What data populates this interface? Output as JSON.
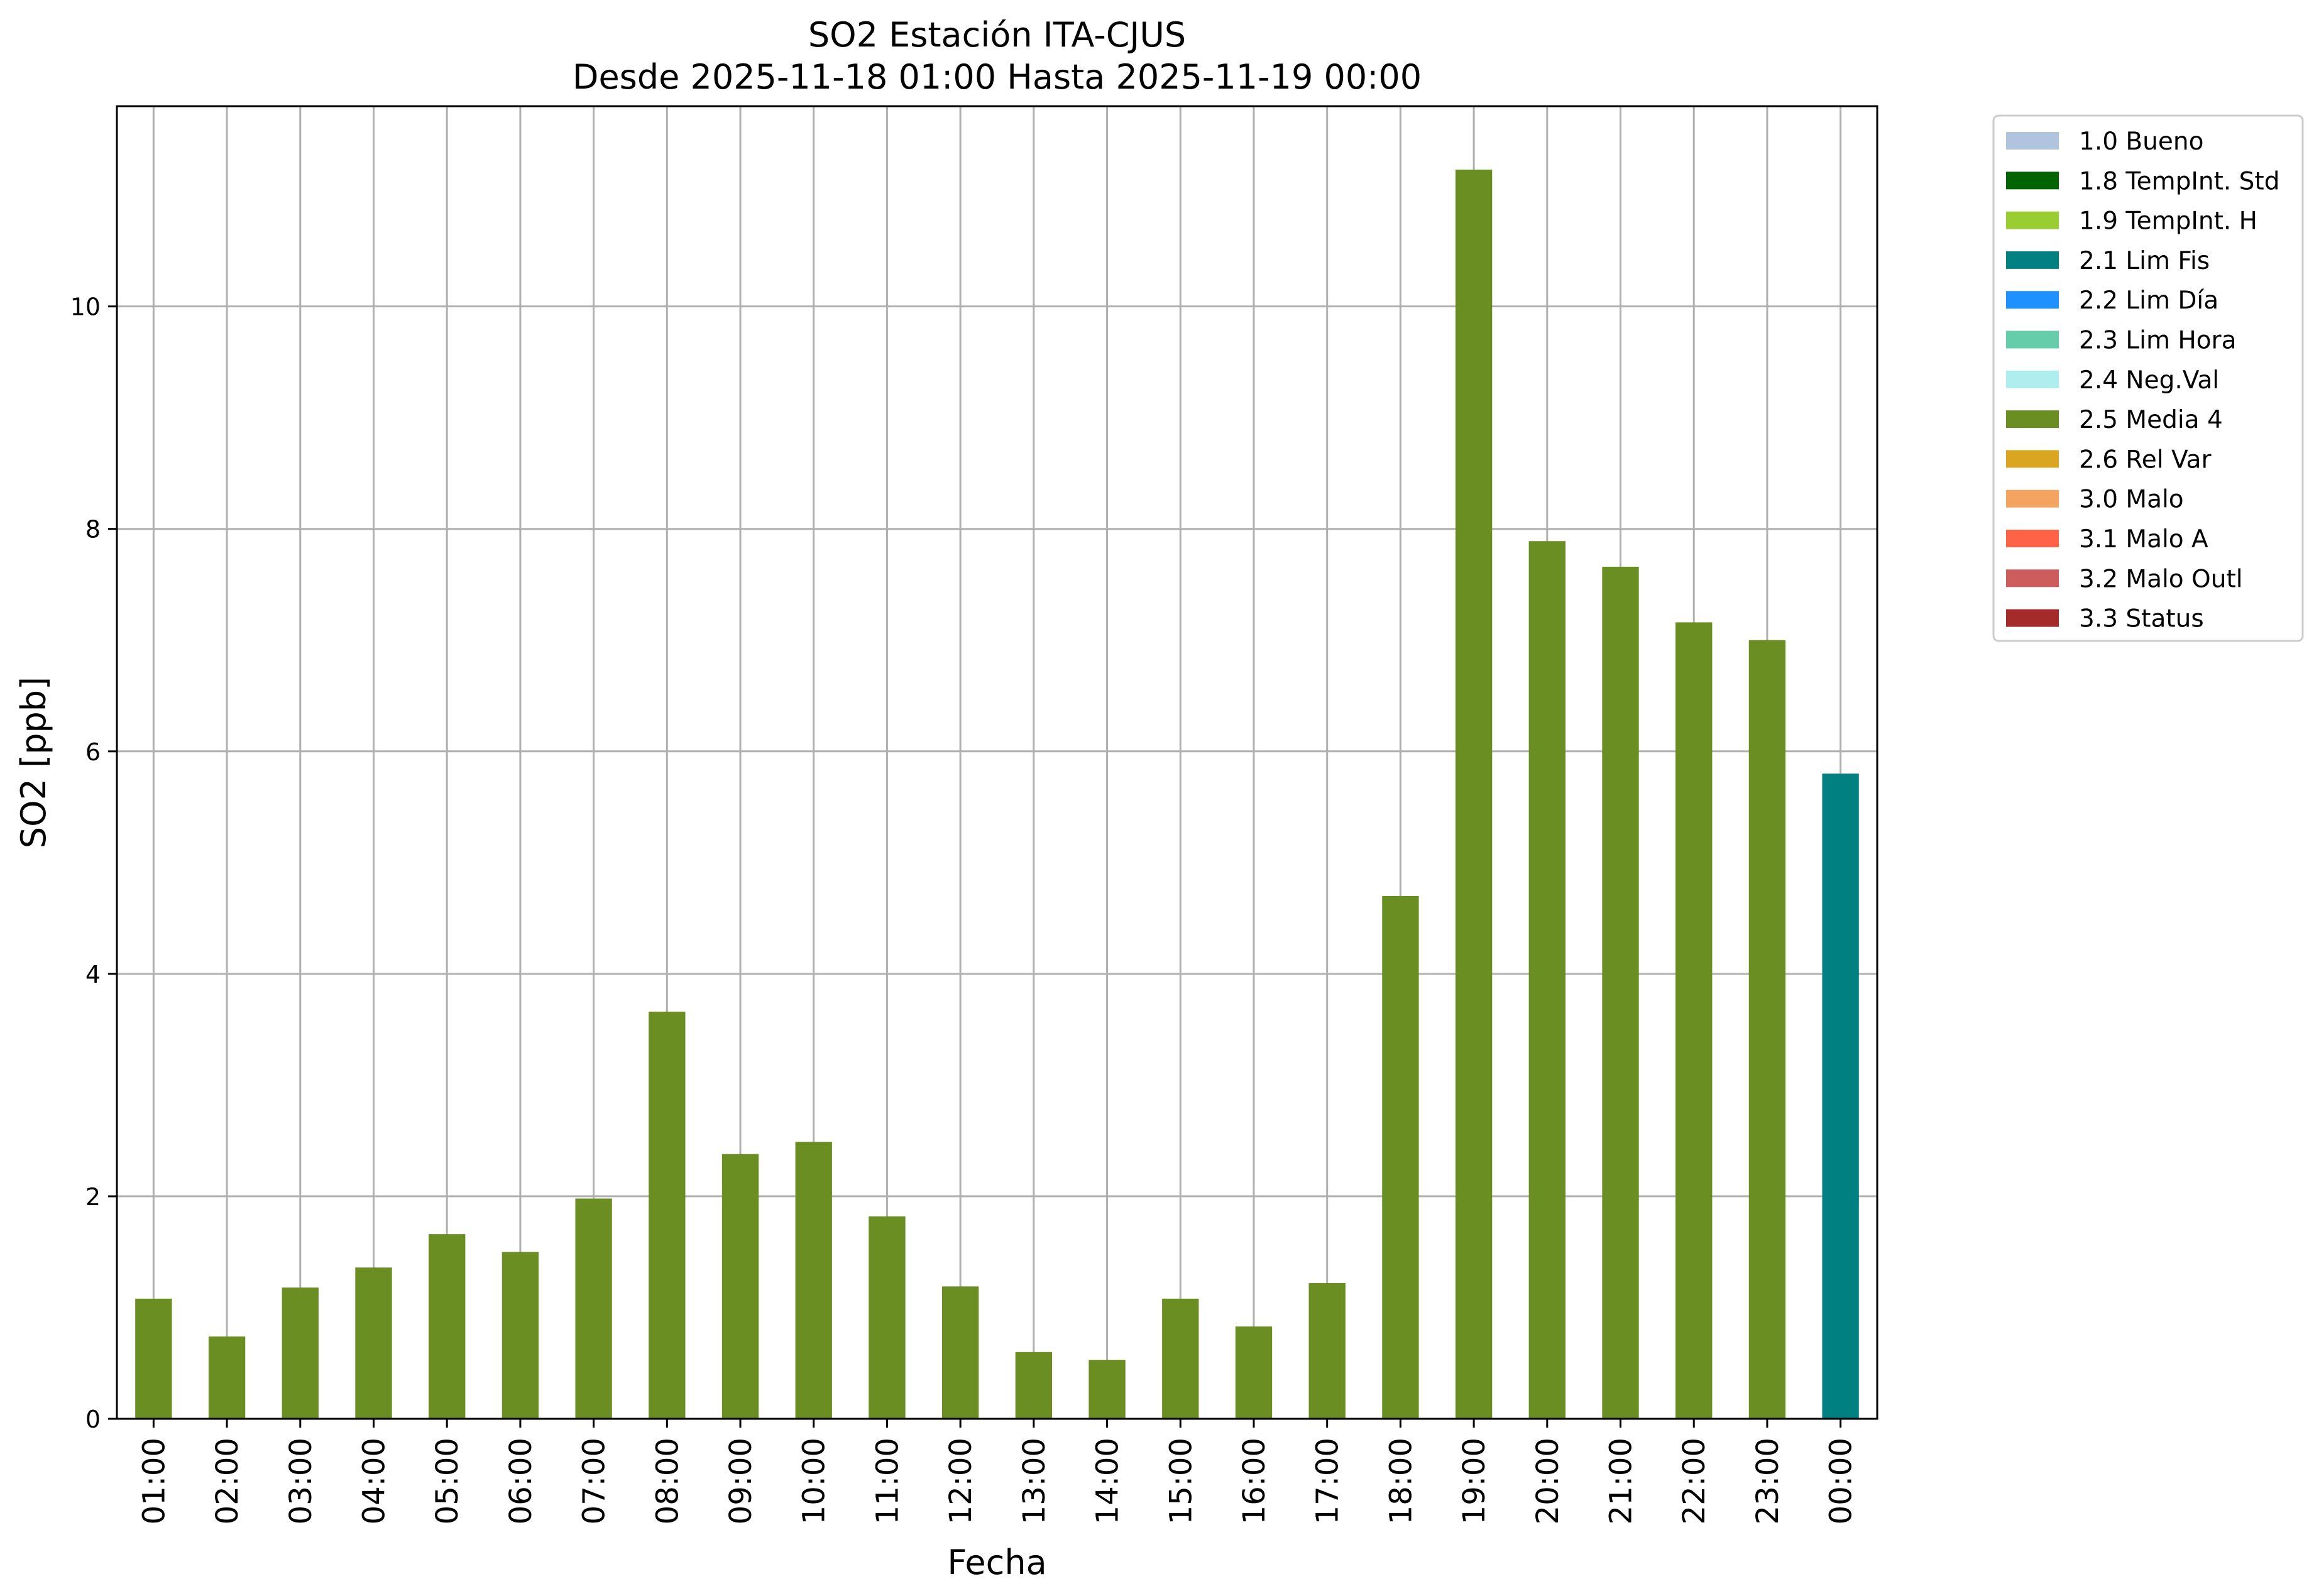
{
  "chart_data": {
    "type": "bar",
    "title": "SO2 Estación ITA-CJUS",
    "subtitle": "Desde 2025-11-18 01:00 Hasta 2025-11-19 00:00",
    "xlabel": "Fecha",
    "ylabel": "SO2 [ppb]",
    "ylim": [
      0,
      11.8
    ],
    "yticks": [
      "0",
      "2",
      "4",
      "6",
      "8",
      "10"
    ],
    "grid": true,
    "legend_position": "outside-top-right",
    "categories": [
      "01:00",
      "02:00",
      "03:00",
      "04:00",
      "05:00",
      "06:00",
      "07:00",
      "08:00",
      "09:00",
      "10:00",
      "11:00",
      "12:00",
      "13:00",
      "14:00",
      "15:00",
      "16:00",
      "17:00",
      "18:00",
      "19:00",
      "20:00",
      "21:00",
      "22:00",
      "23:00",
      "00:00"
    ],
    "values": [
      1.08,
      0.74,
      1.18,
      1.36,
      1.66,
      1.5,
      1.98,
      3.66,
      2.38,
      2.49,
      1.82,
      1.19,
      0.6,
      0.53,
      1.08,
      0.83,
      1.22,
      4.7,
      11.23,
      7.89,
      7.66,
      7.16,
      7.0,
      5.8
    ],
    "flags": [
      "2.5 Media 4",
      "2.5 Media 4",
      "2.5 Media 4",
      "2.5 Media 4",
      "2.5 Media 4",
      "2.5 Media 4",
      "2.5 Media 4",
      "2.5 Media 4",
      "2.5 Media 4",
      "2.5 Media 4",
      "2.5 Media 4",
      "2.5 Media 4",
      "2.5 Media 4",
      "2.5 Media 4",
      "2.5 Media 4",
      "2.5 Media 4",
      "2.5 Media 4",
      "2.5 Media 4",
      "2.5 Media 4",
      "2.5 Media 4",
      "2.5 Media 4",
      "2.5 Media 4",
      "2.5 Media 4",
      "2.1 Lim Fis"
    ],
    "legend": [
      {
        "label": "1.0 Bueno",
        "color": "#b0c4de"
      },
      {
        "label": "1.8 TempInt. Std",
        "color": "#006400"
      },
      {
        "label": "1.9 TempInt. H",
        "color": "#9acd32"
      },
      {
        "label": "2.1 Lim Fis",
        "color": "#008080"
      },
      {
        "label": "2.2 Lim Día",
        "color": "#1e90ff"
      },
      {
        "label": "2.3 Lim Hora",
        "color": "#66cdaa"
      },
      {
        "label": "2.4 Neg.Val",
        "color": "#afeeee"
      },
      {
        "label": "2.5 Media 4",
        "color": "#6b8e23"
      },
      {
        "label": "2.6 Rel Var",
        "color": "#daa520"
      },
      {
        "label": "3.0 Malo",
        "color": "#f4a460"
      },
      {
        "label": "3.1 Malo A",
        "color": "#ff6347"
      },
      {
        "label": "3.2 Malo Outl",
        "color": "#cd5c5c"
      },
      {
        "label": "3.3 Status",
        "color": "#a52a2a"
      }
    ]
  }
}
